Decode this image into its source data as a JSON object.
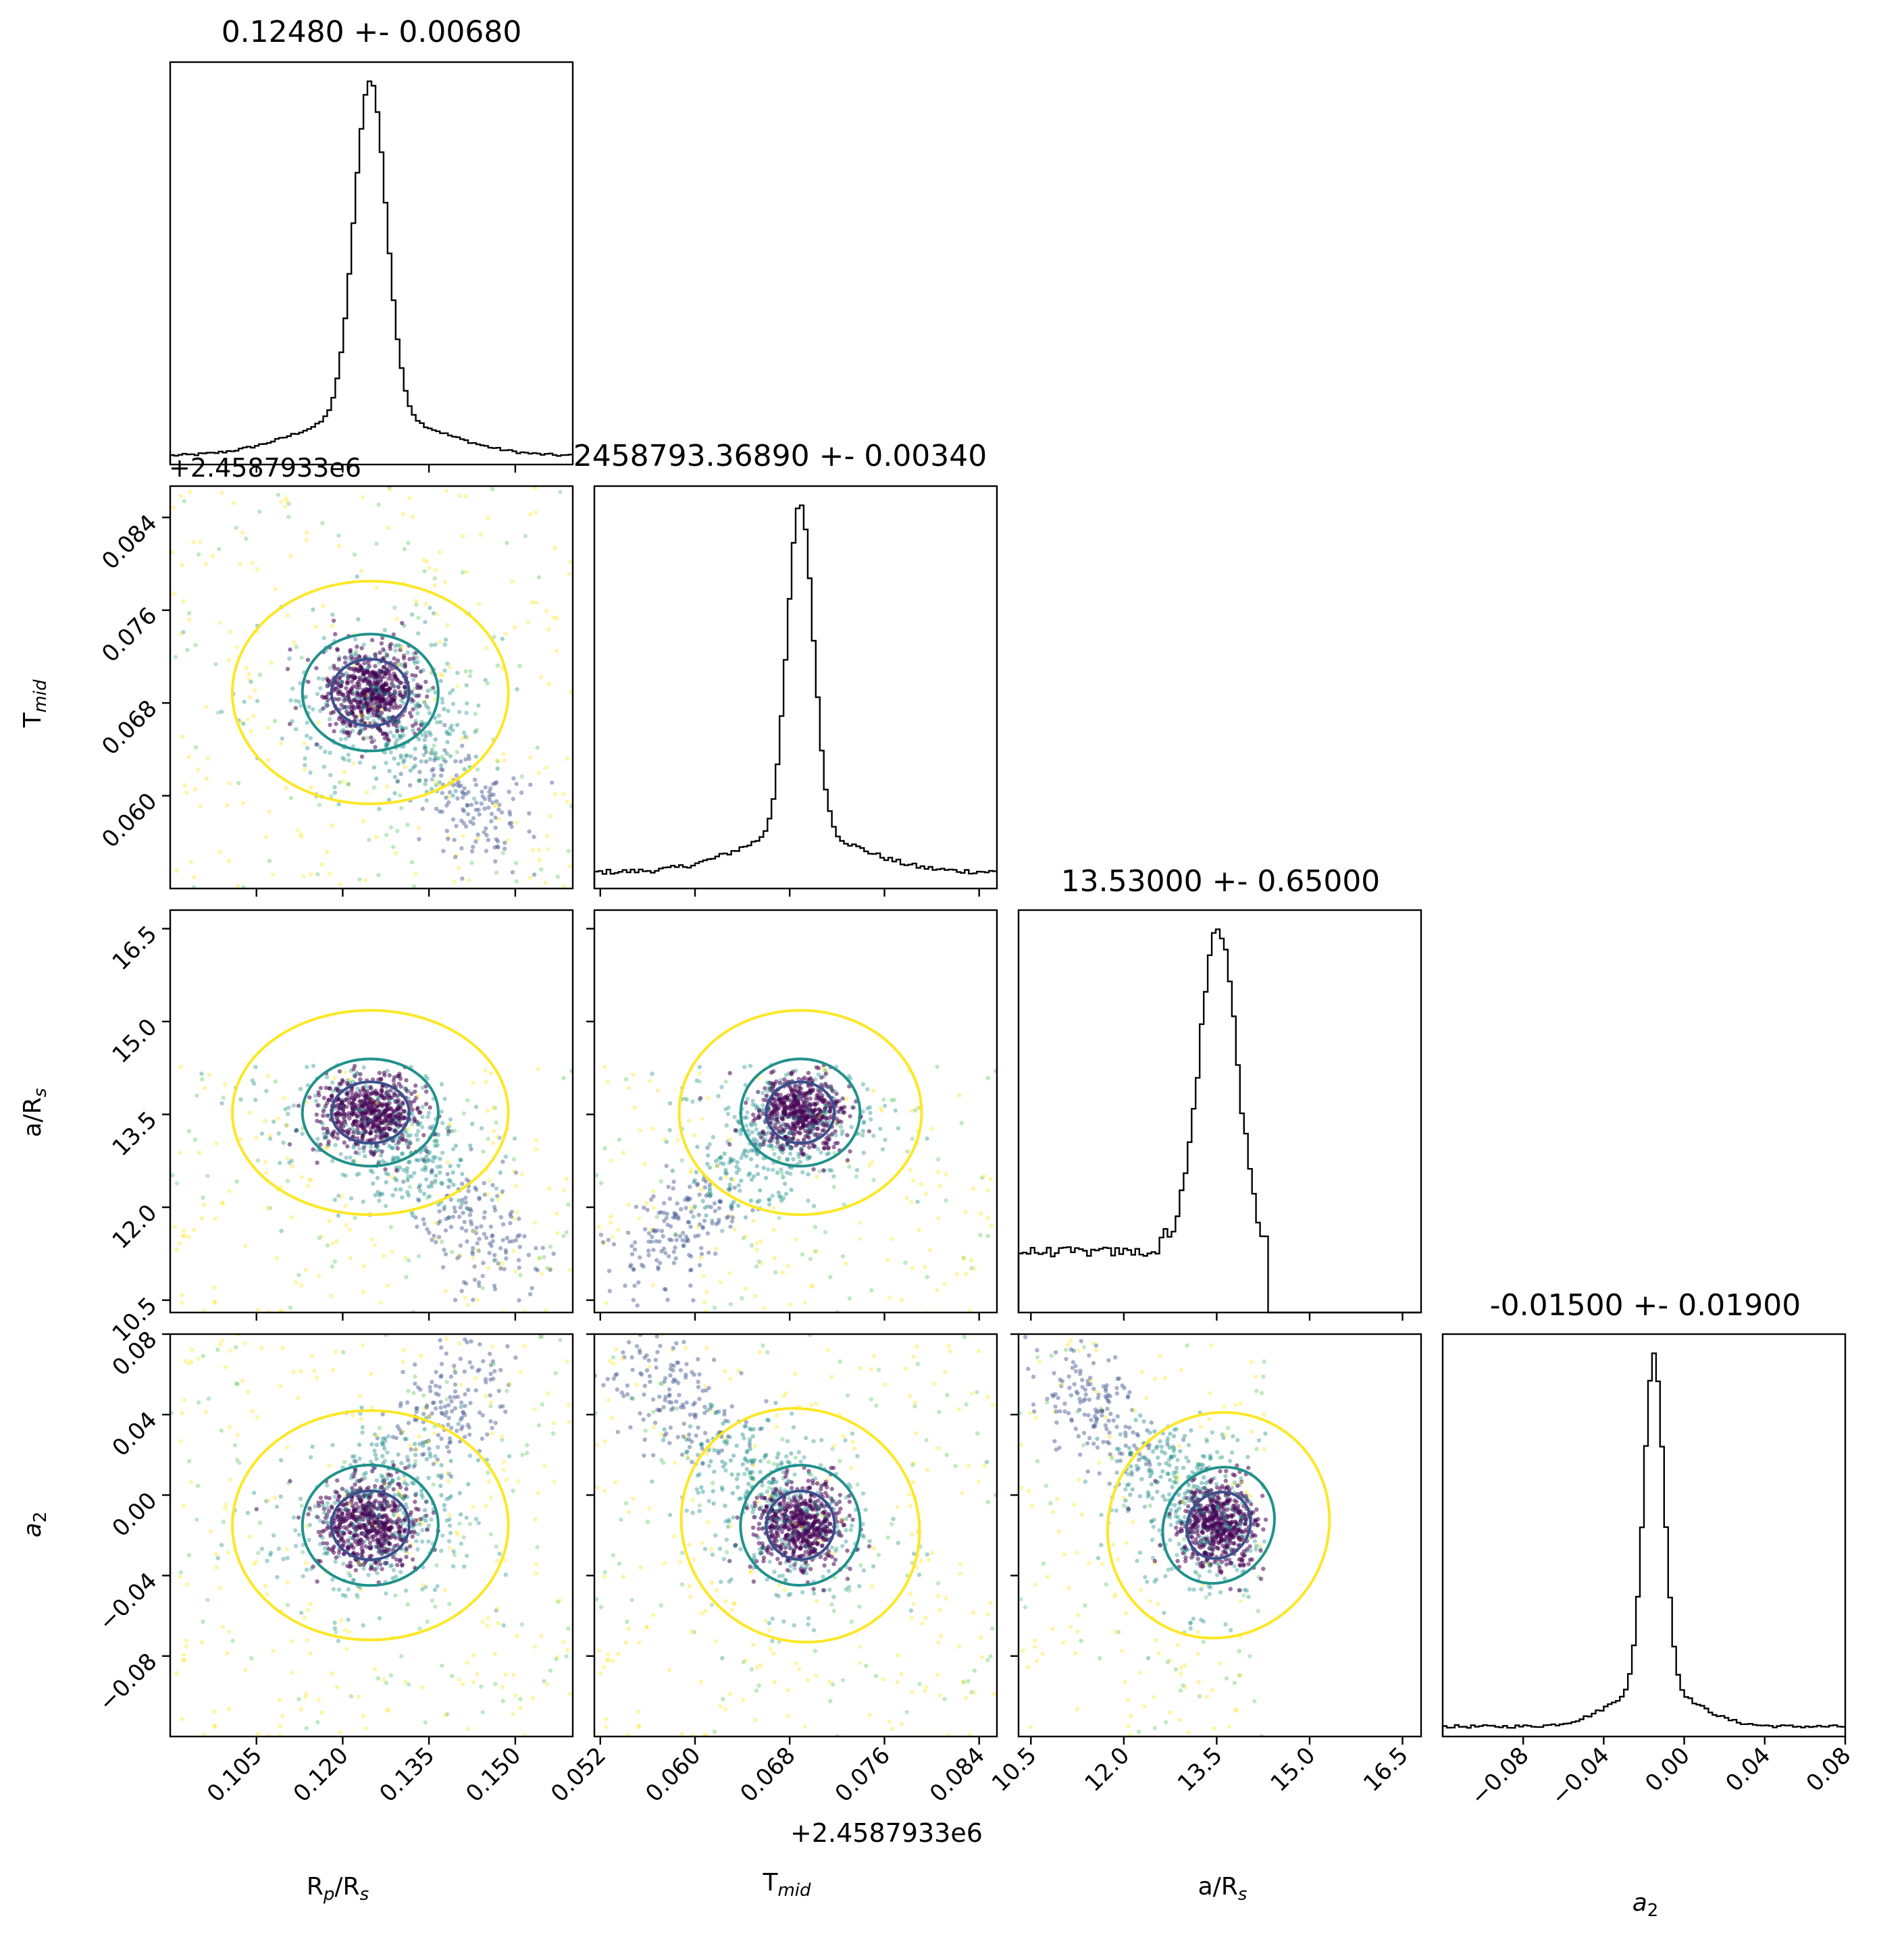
{
  "figure": {
    "type": "corner-plot"
  },
  "colors": {
    "axes": "#000000",
    "histogram": "#000000",
    "scatter_dense": "#440154",
    "scatter_mid1": "#3b528b",
    "scatter_mid2": "#21918c",
    "scatter_mid3": "#5ec962",
    "scatter_sparse": "#fde725",
    "contour_1sigma": "#3b4f8c",
    "contour_2sigma": "#21918c",
    "contour_3sigma": "#fde725"
  },
  "chart_data": [
    {
      "type": "histogram",
      "parameter": "R_p/R_s",
      "title": "0.12480 +- 0.00680",
      "xlim": [
        0.09,
        0.16
      ],
      "xticks": [
        0.105,
        0.12,
        0.135,
        0.15
      ],
      "xtick_labels": [
        "0.105",
        "0.120",
        "0.135",
        "0.150"
      ],
      "peak": 0.1248,
      "sigma_core": 0.0028,
      "background_level": 0.025,
      "wing_width": 0.012
    },
    {
      "type": "histogram",
      "parameter": "T_mid",
      "title": "2458793.36890 +- 0.00340",
      "xlim": [
        0.0515,
        0.0855
      ],
      "xticks": [
        0.052,
        0.06,
        0.068,
        0.076,
        0.084
      ],
      "xtick_labels": [
        "0.052",
        "0.060",
        "0.068",
        "0.076",
        "0.084"
      ],
      "offset_label": "+2.4587933e6",
      "peak": 0.0689,
      "sigma_core": 0.0011,
      "background_level": 0.05,
      "wing_width": 0.005
    },
    {
      "type": "histogram",
      "parameter": "a/R_s",
      "title": "13.53000 +- 0.65000",
      "xlim": [
        10.3,
        16.8
      ],
      "xticks": [
        10.5,
        12.0,
        13.5,
        15.0,
        16.5
      ],
      "xtick_labels": [
        "10.5",
        "12.0",
        "13.5",
        "15.0",
        "16.5"
      ],
      "peak": 13.53,
      "sigma_core": 0.3,
      "background_level": 0.19,
      "truncate_at": 14.3
    },
    {
      "type": "histogram",
      "parameter": "a_2",
      "title": "-0.01500 +- 0.01900",
      "xlim": [
        -0.12,
        0.08
      ],
      "xticks": [
        -0.08,
        -0.04,
        0.0,
        0.04,
        0.08
      ],
      "xtick_labels": [
        "−0.08",
        "−0.04",
        "0.00",
        "0.04",
        "0.08"
      ],
      "peak": -0.015,
      "sigma_core": 0.005,
      "background_level": 0.03,
      "wing_width": 0.02
    },
    {
      "type": "scatter",
      "x_param": "R_p/R_s",
      "y_param": "T_mid",
      "xlim": [
        0.09,
        0.16
      ],
      "ylim": [
        0.052,
        0.0867
      ],
      "yticks": [
        0.06,
        0.068,
        0.076,
        0.084
      ],
      "ytick_labels": [
        "0.060",
        "0.068",
        "0.076",
        "0.084"
      ],
      "y_offset_label": "+2.4587933e6",
      "center": [
        0.1248,
        0.0689
      ],
      "sigma": [
        0.0075,
        0.0032
      ],
      "tail_to": [
        0.147,
        0.0565
      ]
    },
    {
      "type": "scatter",
      "x_param": "R_p/R_s",
      "y_param": "a/R_s",
      "xlim": [
        0.09,
        0.16
      ],
      "ylim": [
        10.3,
        16.8
      ],
      "yticks": [
        10.5,
        12.0,
        13.5,
        15.0,
        16.5
      ],
      "ytick_labels": [
        "10.5",
        "12.0",
        "13.5",
        "15.0",
        "16.5"
      ],
      "center": [
        0.1248,
        13.53
      ],
      "sigma": [
        0.0075,
        0.55
      ],
      "ymax_cut": 14.3,
      "tail_to": [
        0.148,
        11.0
      ]
    },
    {
      "type": "scatter",
      "x_param": "T_mid",
      "y_param": "a/R_s",
      "xlim": [
        0.0515,
        0.0855
      ],
      "ylim": [
        10.3,
        16.8
      ],
      "center": [
        0.0689,
        13.53
      ],
      "sigma": [
        0.0032,
        0.55
      ],
      "ymax_cut": 14.3,
      "tail_to": [
        0.0555,
        11.0
      ]
    },
    {
      "type": "scatter",
      "x_param": "R_p/R_s",
      "y_param": "a_2",
      "xlim": [
        0.09,
        0.16
      ],
      "ylim": [
        -0.12,
        0.08
      ],
      "yticks": [
        -0.08,
        -0.04,
        0.0,
        0.04,
        0.08
      ],
      "ytick_labels": [
        "−0.08",
        "−0.04",
        "0.00",
        "0.04",
        "0.08"
      ],
      "center": [
        0.1248,
        -0.015
      ],
      "sigma": [
        0.0075,
        0.019
      ],
      "tail_to": [
        0.143,
        0.065
      ]
    },
    {
      "type": "scatter",
      "x_param": "T_mid",
      "y_param": "a_2",
      "xlim": [
        0.0515,
        0.0855
      ],
      "ylim": [
        -0.12,
        0.08
      ],
      "center": [
        0.0689,
        -0.015
      ],
      "sigma": [
        0.0032,
        0.019
      ],
      "tail_to": [
        0.054,
        0.07
      ]
    },
    {
      "type": "scatter",
      "x_param": "a/R_s",
      "y_param": "a_2",
      "xlim": [
        10.3,
        16.8
      ],
      "ylim": [
        -0.12,
        0.08
      ],
      "center": [
        13.53,
        -0.015
      ],
      "sigma": [
        0.55,
        0.019
      ],
      "xmax_cut": 14.3,
      "tail_to": [
        11.0,
        0.06
      ]
    }
  ],
  "axis_labels": {
    "rp_rs": {
      "main": "R",
      "sub": "p",
      "rest": "/R",
      "sub2": "s"
    },
    "tmid": {
      "main": "T",
      "sub": "mid"
    },
    "a_rs": {
      "main": "a/R",
      "sub": "s"
    },
    "a2": {
      "main": "a",
      "sub": "2"
    },
    "offset": "+2.4587933e6"
  }
}
